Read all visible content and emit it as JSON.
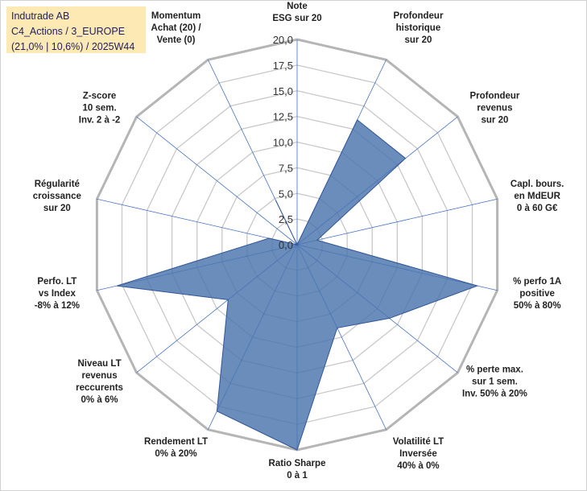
{
  "info": {
    "line1": "Indutrade AB",
    "line2": "C4_Actions / 3_EUROPE",
    "line3": "(21,0% | 10,6%) / 2025W44"
  },
  "chart_data": {
    "type": "radar",
    "title": "Indutrade AB",
    "rlim": [
      0,
      20
    ],
    "ticks": [
      "0,0",
      "2,5",
      "5,0",
      "7,5",
      "10,0",
      "12,5",
      "15,0",
      "17,5",
      "20,0"
    ],
    "categories": [
      [
        "Note",
        "ESG sur 20"
      ],
      [
        "Profondeur",
        "historique",
        "sur 20"
      ],
      [
        "Profondeur",
        "revenus",
        "sur 20"
      ],
      [
        "Capl. bours.",
        "en MdEUR",
        "0 à 60 G€"
      ],
      [
        "% perfo 1A",
        "positive",
        "50% à 80%"
      ],
      [
        "% perte max.",
        "sur 1 sem.",
        "Inv. 50% à 20%"
      ],
      [
        "Volatilité LT",
        "Inversée",
        "40% à 0%"
      ],
      [
        "Ratio Sharpe",
        "0 à 1"
      ],
      [
        "Rendement LT",
        "0% à 20%"
      ],
      [
        "Niveau LT",
        "revenus",
        "reccurents",
        "0% à 6%"
      ],
      [
        "Perfo. LT",
        "vs Index",
        "-8% à 12%"
      ],
      [
        "Régularité",
        "croissance",
        "sur 20"
      ],
      [
        "Z-score",
        "10 sem.",
        "Inv. 2 à -2"
      ],
      [
        "Momentum",
        "Achat (20) /",
        "Vente (0)"
      ]
    ],
    "series": [
      {
        "name": "Indutrade AB",
        "values": [
          0,
          13.5,
          13.5,
          2.0,
          18.0,
          11.5,
          9.0,
          20.0,
          18.0,
          8.6,
          18.0,
          2.8,
          0,
          4.8
        ]
      }
    ],
    "colors": {
      "fill": "#4a74ad",
      "stroke": "#2f5597",
      "grid": "#c8c8c8",
      "ring": "#b5b5b5",
      "spoke": "#4472c4"
    }
  }
}
